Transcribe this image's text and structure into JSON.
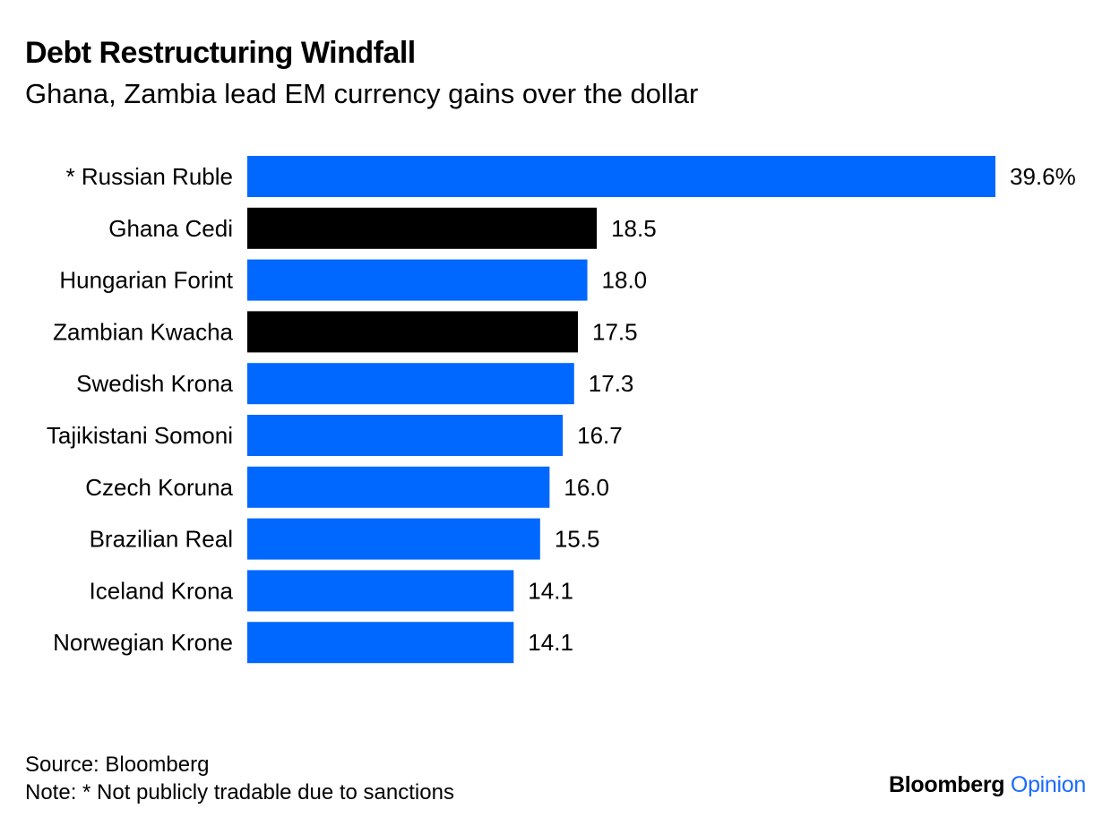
{
  "header": {
    "title": "Debt Restructuring Windfall",
    "subtitle": "Ghana, Zambia lead EM currency gains over the dollar"
  },
  "footer": {
    "source": "Source: Bloomberg",
    "note": "Note: * Not publicly tradable due to sanctions"
  },
  "brand": {
    "name": "Bloomberg",
    "accent": "Opinion"
  },
  "colors": {
    "default_bar": "#0068FF",
    "highlight_bar": "#000000",
    "brand_accent": "#1A6AFF"
  },
  "chart_data": {
    "type": "bar",
    "orientation": "horizontal",
    "title": "Debt Restructuring Windfall",
    "subtitle": "Ghana, Zambia lead EM currency gains over the dollar",
    "categories": [
      "* Russian Ruble",
      "Ghana Cedi",
      "Hungarian Forint",
      "Zambian Kwacha",
      "Swedish Krona",
      "Tajikistani Somoni",
      "Czech Koruna",
      "Brazilian Real",
      "Iceland Krona",
      "Norwegian Krone"
    ],
    "values": [
      39.6,
      18.5,
      18.0,
      17.5,
      17.3,
      16.7,
      16.0,
      15.5,
      14.1,
      14.1
    ],
    "value_labels": [
      "39.6%",
      "18.5",
      "18.0",
      "17.5",
      "17.3",
      "16.7",
      "16.0",
      "15.5",
      "14.1",
      "14.1"
    ],
    "highlighted": [
      "Ghana Cedi",
      "Zambian Kwacha"
    ],
    "unit": "%",
    "xlim": [
      0,
      39.6
    ],
    "xlabel": "",
    "ylabel": "",
    "grid": false,
    "legend": "none"
  }
}
